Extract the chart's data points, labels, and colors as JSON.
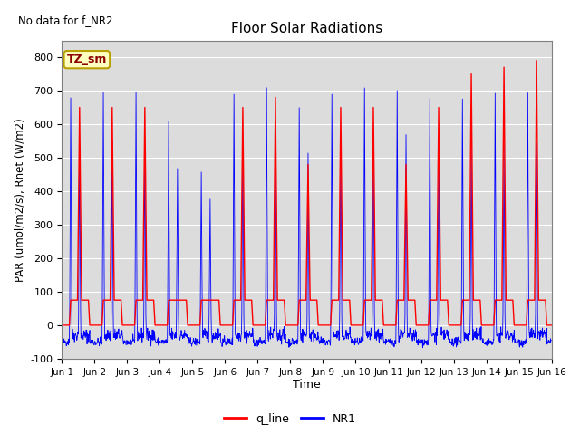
{
  "title": "Floor Solar Radiations",
  "xlabel": "Time",
  "ylabel": "PAR (umol/m2/s), Rnet (W/m2)",
  "ylim": [
    -100,
    850
  ],
  "yticks": [
    -100,
    0,
    100,
    200,
    300,
    400,
    500,
    600,
    700,
    800
  ],
  "annotation_text": "No data for f_NR2",
  "tz_label": "TZ_sm",
  "tz_bg": "#FFFFC0",
  "tz_border": "#B8A000",
  "num_days": 15,
  "bg_color": "#DCDCDC",
  "q_line_color": "red",
  "nr1_color": "blue",
  "daily_peaks_q": [
    650,
    650,
    650,
    75,
    75,
    650,
    680,
    480,
    650,
    650,
    480,
    650,
    750,
    770,
    790
  ],
  "daily_peaks_nr1": [
    690,
    680,
    700,
    595,
    450,
    695,
    700,
    640,
    700,
    700,
    685,
    680,
    685,
    680,
    695
  ],
  "xtick_labels": [
    "Jun 1",
    "Jun 2",
    "Jun 3",
    "Jun 4",
    "Jun 5",
    "Jun 6",
    "Jun 7",
    "Jun 8",
    "Jun 9",
    "Jun 10",
    "Jun 11",
    "Jun 12",
    "Jun 13",
    "Jun 14",
    "Jun 15",
    "Jun 16"
  ],
  "figsize": [
    6.4,
    4.8
  ],
  "dpi": 100
}
